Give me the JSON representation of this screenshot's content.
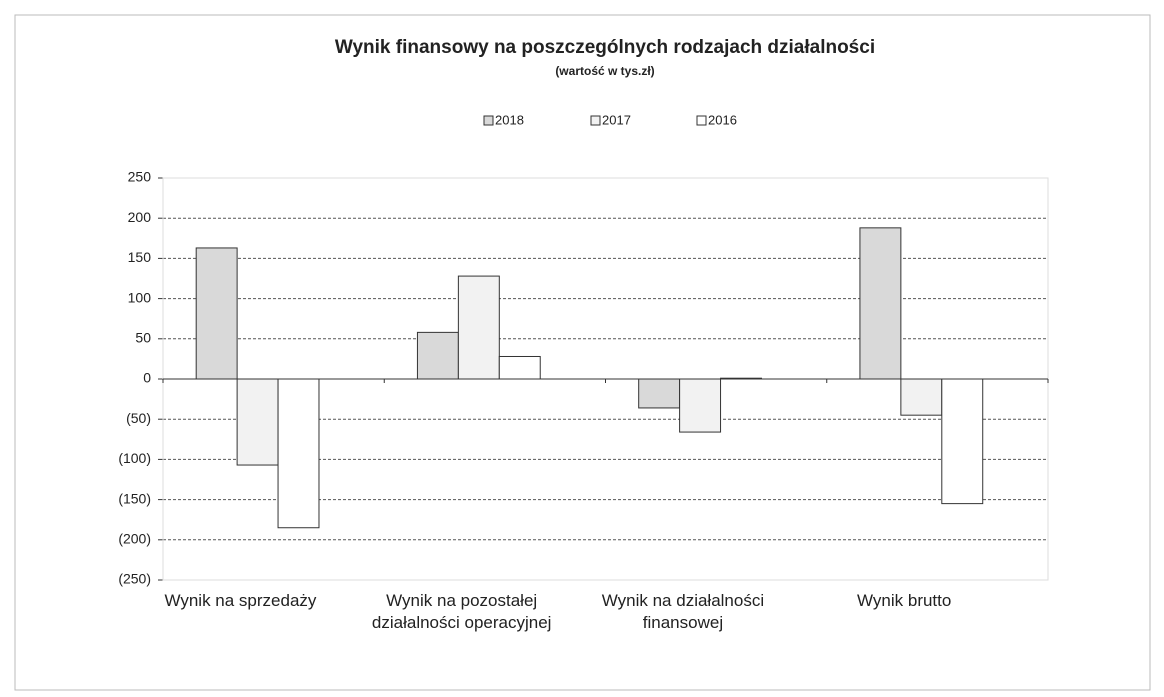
{
  "chart_data": {
    "type": "bar",
    "title": "Wynik finansowy na poszczególnych rodzajach działalności",
    "subtitle": "(wartość w tys.zł)",
    "categories": [
      "Wynik na sprzedaży",
      "Wynik na pozostałej działalności operacyjnej",
      "Wynik na działalności finansowej",
      "Wynik brutto"
    ],
    "series": [
      {
        "name": "2018",
        "color": "#d9d9d9",
        "values": [
          163,
          58,
          -36,
          188
        ]
      },
      {
        "name": "2017",
        "color": "#f2f2f2",
        "values": [
          -107,
          128,
          -66,
          -45
        ]
      },
      {
        "name": "2016",
        "color": "#ffffff",
        "values": [
          -185,
          28,
          1,
          -155
        ]
      }
    ],
    "ylim": [
      -250,
      250
    ],
    "yticks": [
      {
        "value": -250,
        "label": "(250)"
      },
      {
        "value": -200,
        "label": "(200)"
      },
      {
        "value": -150,
        "label": "(150)"
      },
      {
        "value": -100,
        "label": "(100)"
      },
      {
        "value": -50,
        "label": "(50)"
      },
      0,
      50,
      100,
      150,
      200,
      250
    ],
    "grid": true,
    "legend": "top"
  }
}
